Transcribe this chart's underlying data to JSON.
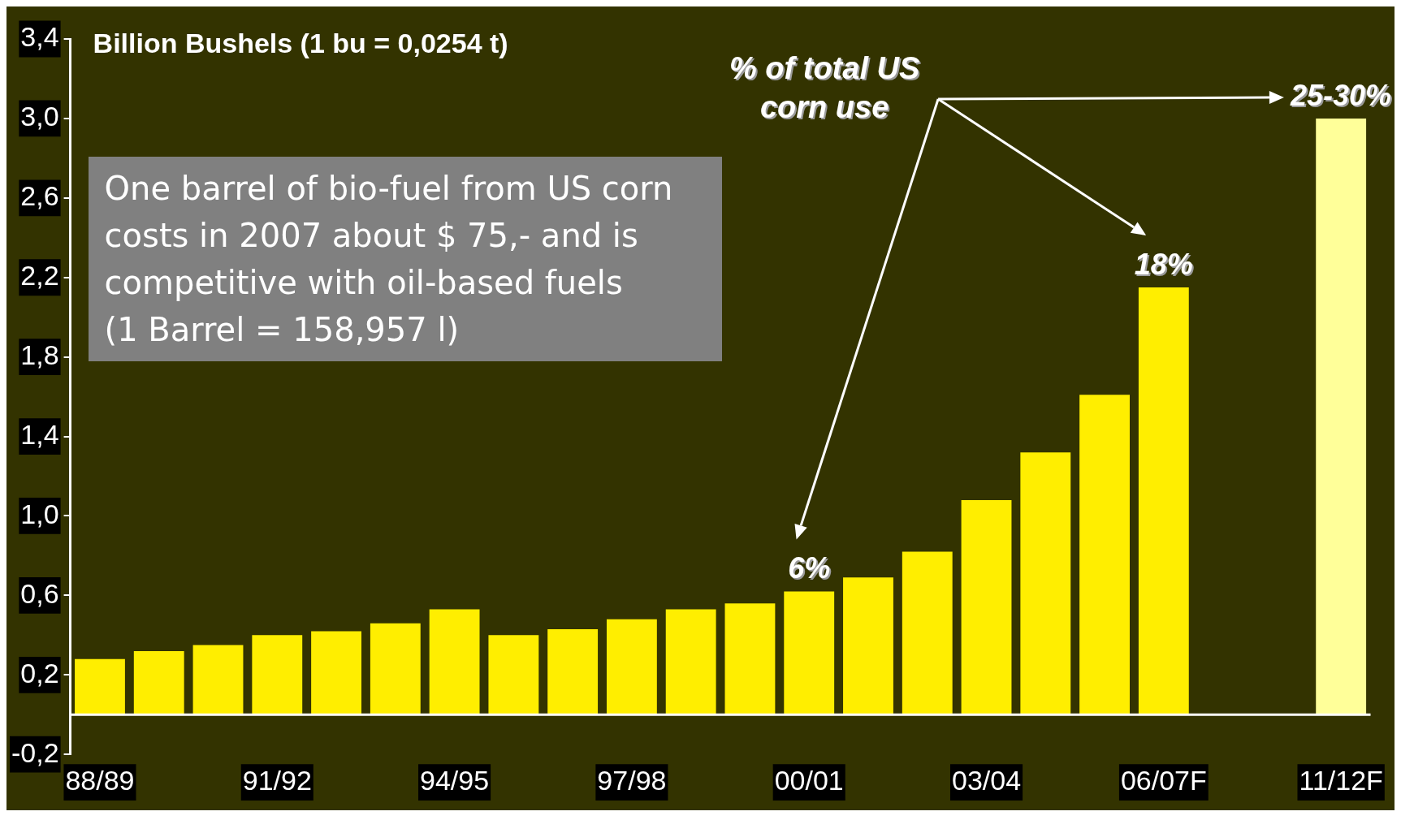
{
  "chart_data": {
    "type": "bar",
    "ylabel": "Billion Bushels (1 bu = 0,0254 t)",
    "categories": [
      "88/89",
      null,
      null,
      "91/92",
      null,
      null,
      "94/95",
      null,
      null,
      "97/98",
      null,
      null,
      "00/01",
      null,
      null,
      "03/04",
      null,
      null,
      "06/07F",
      null,
      null,
      "11/12F"
    ],
    "values": [
      0.28,
      0.32,
      0.35,
      0.4,
      0.42,
      0.46,
      0.53,
      0.4,
      0.43,
      0.48,
      0.53,
      0.56,
      0.62,
      0.69,
      0.82,
      1.08,
      1.32,
      1.61,
      2.15,
      null,
      null,
      3.0
    ],
    "colors": [
      "#ffee00",
      "#ffee00",
      "#ffee00",
      "#ffee00",
      "#ffee00",
      "#ffee00",
      "#ffee00",
      "#ffee00",
      "#ffee00",
      "#ffee00",
      "#ffee00",
      "#ffee00",
      "#ffee00",
      "#ffee00",
      "#ffee00",
      "#ffee00",
      "#ffee00",
      "#ffee00",
      "#ffee00",
      "#ffee00",
      "#ffee00",
      "#ffff99"
    ],
    "ylim": [
      -0.2,
      3.4
    ],
    "yticks": [
      {
        "value": -0.2,
        "label": "-0,2"
      },
      {
        "value": 0.2,
        "label": "0,2"
      },
      {
        "value": 0.6,
        "label": "0,6"
      },
      {
        "value": 1.0,
        "label": "1,0"
      },
      {
        "value": 1.4,
        "label": "1,4"
      },
      {
        "value": 1.8,
        "label": "1,8"
      },
      {
        "value": 2.2,
        "label": "2,2"
      },
      {
        "value": 2.6,
        "label": "2,6"
      },
      {
        "value": 3.0,
        "label": "3,0"
      },
      {
        "value": 3.4,
        "label": "3,4"
      }
    ],
    "annotations": [
      {
        "text": "6%",
        "x": "00/01",
        "y": 0.62
      },
      {
        "text": "18%",
        "x": "06/07F",
        "y": 2.15
      },
      {
        "text": "25-30%",
        "x": "11/12F",
        "y": 3.0
      },
      "% of total US corn use",
      "One barrel of bio-fuel from US corn costs in 2007 about $ 75,- and is competitive with oil-based fuels\n(1 Barrel = 158,957 l)"
    ]
  }
}
